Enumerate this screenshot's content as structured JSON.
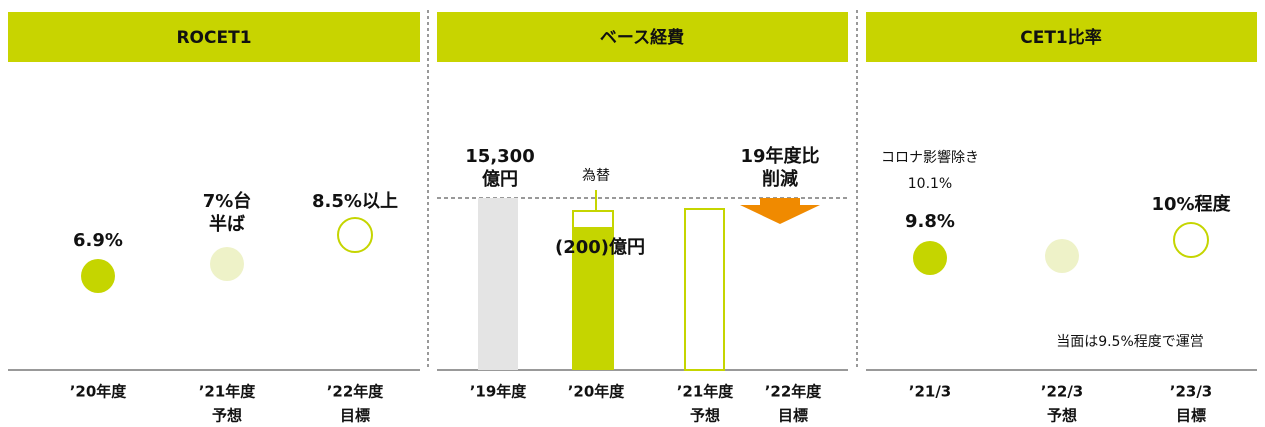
{
  "panels": [
    {
      "title": "ROCET1",
      "columns": [
        {
          "label": [
            "’20年度"
          ],
          "value_label": [
            "6.9%"
          ]
        },
        {
          "label": [
            "’21年度",
            "予想"
          ],
          "value_label": [
            "7%台",
            "半ば"
          ]
        },
        {
          "label": [
            "’22年度",
            "目標"
          ],
          "value_label": [
            "8.5%以上"
          ]
        }
      ]
    },
    {
      "title": "ベース経費",
      "columns": [
        {
          "label": [
            "’19年度"
          ],
          "value_label": [
            "15,300",
            "億円"
          ]
        },
        {
          "label": [
            "’20年度"
          ],
          "value_label": [
            "(200)億円"
          ],
          "note": "為替"
        },
        {
          "label": [
            "’21年度",
            "予想"
          ]
        },
        {
          "label": [
            "’22年度",
            "目標"
          ],
          "value_label": [
            "19年度比",
            "削減"
          ]
        }
      ]
    },
    {
      "title": "CET1比率",
      "columns": [
        {
          "label": [
            "’21/3"
          ],
          "value_label": [
            "9.8%"
          ],
          "note": [
            "コロナ影響除き",
            "10.1%"
          ]
        },
        {
          "label": [
            "’22/3",
            "予想"
          ]
        },
        {
          "label": [
            "’23/3",
            "目標"
          ],
          "value_label": [
            "10%程度"
          ]
        }
      ],
      "footnote": "当面は9.5%程度で運営"
    }
  ]
}
